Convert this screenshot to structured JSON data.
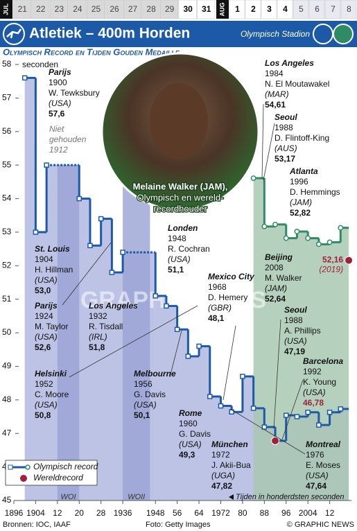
{
  "header": {
    "title": "Atletiek – 400m Horden",
    "venue": "Olympisch Stadion"
  },
  "calendar": {
    "months": [
      "JUL",
      "AUG"
    ],
    "days": [
      21,
      22,
      23,
      24,
      25,
      26,
      27,
      28,
      29,
      30,
      31,
      1,
      2,
      3,
      4,
      5,
      6,
      7,
      8
    ]
  },
  "chart_data": {
    "type": "line",
    "title": "Olympisch Record en Tijden Gouden Medaille",
    "y_label": "seconden",
    "xlim": [
      1896,
      2020
    ],
    "ylim": [
      45,
      58
    ],
    "xticks": [
      1896,
      1904,
      {
        "value": 1912,
        "label": "12"
      },
      {
        "value": 1920,
        "label": "20"
      },
      {
        "value": 1928,
        "label": "28"
      },
      1936,
      1948,
      {
        "value": 1956,
        "label": "56"
      },
      {
        "value": 1964,
        "label": "64"
      },
      1972,
      {
        "value": 1980,
        "label": "80"
      },
      {
        "value": 1988,
        "label": "88"
      },
      {
        "value": 1996,
        "label": "96"
      },
      2004,
      {
        "value": 2012,
        "label": "12"
      }
    ],
    "yticks": [
      45,
      46,
      47,
      48,
      49,
      50,
      51,
      52,
      53,
      54,
      55,
      56,
      57,
      58
    ],
    "series": [
      {
        "color": "#1c5aa8",
        "area_color": "#bcc3e4",
        "x": [
          1900,
          1904,
          1908,
          1920,
          1924,
          1928,
          1932,
          1936,
          1948,
          1952,
          1956,
          1960,
          1964,
          1968,
          1972,
          1976,
          1980,
          1984,
          1988,
          1992,
          1996,
          2000,
          2004,
          2008,
          2012,
          2016
        ],
        "values": [
          57.6,
          53.0,
          55.0,
          54.0,
          52.6,
          53.4,
          51.8,
          52.4,
          51.1,
          50.8,
          50.1,
          49.3,
          49.6,
          48.1,
          47.82,
          47.64,
          48.7,
          47.75,
          47.19,
          46.78,
          47.54,
          47.5,
          47.63,
          47.25,
          47.63,
          47.73
        ]
      },
      {
        "color": "#2e8b63",
        "area_color": "#a9c8b3",
        "x": [
          1984,
          1988,
          1992,
          1996,
          2000,
          2004,
          2008,
          2012,
          2016
        ],
        "values": [
          54.61,
          53.17,
          53.23,
          52.82,
          53.02,
          52.82,
          52.64,
          52.7,
          53.13
        ]
      }
    ],
    "world_records": [
      {
        "x": 1992,
        "value": 46.78
      },
      {
        "x": 2019,
        "value": 52.16,
        "label": "52,16",
        "note": "(2019)"
      }
    ],
    "world_record_color": "#a0203a",
    "annotations": [
      {
        "city": "Parijs",
        "year": "1900",
        "name": "W. Tewksbury",
        "country": "(USA)",
        "time": "57,6"
      },
      {
        "city": "St. Louis",
        "year": "1904",
        "name": "H. Hillman",
        "country": "(USA)",
        "time": "53,0"
      },
      {
        "city": "Parijs",
        "year": "1924",
        "name": "M. Taylor",
        "country": "(USA)",
        "time": "52,6"
      },
      {
        "city": "Los Angeles",
        "year": "1932",
        "name": "R. Tisdall",
        "country": "(IRL)",
        "time": "51,8"
      },
      {
        "city": "Londen",
        "year": "1948",
        "name": "R. Cochran",
        "country": "(USA)",
        "time": "51,1"
      },
      {
        "city": "Helsinki",
        "year": "1952",
        "name": "C. Moore",
        "country": "(USA)",
        "time": "50,8"
      },
      {
        "city": "Melbourne",
        "year": "1956",
        "name": "G. Davis",
        "country": "(USA)",
        "time": "50,1"
      },
      {
        "city": "Rome",
        "year": "1960",
        "name": "G. Davis",
        "country": "(USA)",
        "time": "49,3"
      },
      {
        "city": "Mexico City",
        "year": "1968",
        "name": "D. Hemery",
        "country": "(GBR)",
        "time": "48,1"
      },
      {
        "city": "München",
        "year": "1972",
        "name": "J. Akii-Bua",
        "country": "(UGA)",
        "time": "47,82"
      },
      {
        "city": "Montreal",
        "year": "1976",
        "name": "E. Moses",
        "country": "(USA)",
        "time": "47,64"
      },
      {
        "city": "Seoul",
        "year": "1988",
        "name": "A. Phillips",
        "country": "(USA)",
        "time": "47,19"
      },
      {
        "city": "Barcelona",
        "year": "1992",
        "name": "K. Young",
        "country": "(USA)",
        "time": "46,78",
        "color": "#a0203a"
      },
      {
        "city": "Los Angeles",
        "year": "1984",
        "name": "N. El Moutawakel",
        "country": "(MAR)",
        "time": "54,61"
      },
      {
        "city": "Seoul",
        "year": "1988",
        "name": "D. Flintoff-King",
        "country": "(AUS)",
        "time": "53,17"
      },
      {
        "city": "Atlanta",
        "year": "1996",
        "name": "D. Hemmings",
        "country": "(JAM)",
        "time": "52,82"
      },
      {
        "city": "Beijing",
        "year": "2008",
        "name": "M. Walker",
        "country": "(JAM)",
        "time": "52,64"
      }
    ],
    "not_held": [
      "Niet",
      "gehouden",
      "1912"
    ],
    "wars": [
      "WOI",
      "WOII"
    ],
    "legend": [
      "Olympisch record",
      "Wereldrecord"
    ],
    "footnote": "Tijden in honderdsten seconden"
  },
  "photo": {
    "caption": [
      "Melaine Walker (JAM),",
      "Olympisch en wereld-",
      "recordhouder"
    ]
  },
  "footer": {
    "sources": "Bronnen: IOC, IAAF",
    "photo_credit": "Foto: Getty Images",
    "credit": "© GRAPHIC NEWS",
    "watermark": "GRAPHIC NEWS"
  }
}
